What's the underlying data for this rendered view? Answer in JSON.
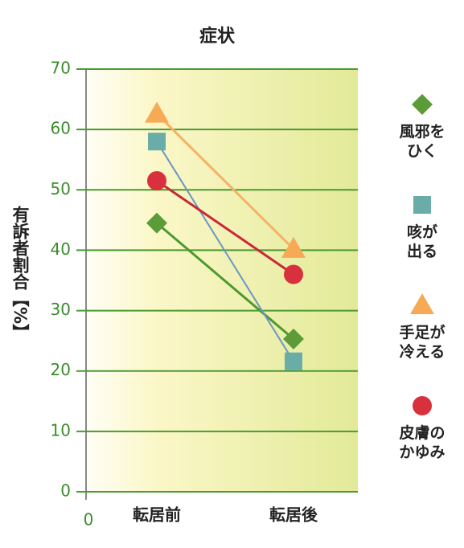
{
  "chart_data": {
    "type": "line",
    "title": "症状",
    "y_label": "有訴者割合【%】",
    "x_origin_label": "0",
    "categories": [
      "転居前",
      "転居後"
    ],
    "series": [
      {
        "name": "風邪を\nひく",
        "color": "#5c9c38",
        "line_color": "#4a9a30",
        "marker": "diamond",
        "values": [
          44.5,
          25.3
        ]
      },
      {
        "name": "咳が\n出る",
        "color": "#6aaca8",
        "line_color": "#6a96c4",
        "marker": "square",
        "values": [
          58,
          21.6
        ]
      },
      {
        "name": "手足が\n冷える",
        "color": "#f6aa55",
        "line_color": "#f6b266",
        "marker": "triangle",
        "values": [
          62.6,
          40.2
        ]
      },
      {
        "name": "皮膚の\nかゆみ",
        "color": "#d8303c",
        "line_color": "#c82838",
        "marker": "circle",
        "values": [
          51.5,
          36
        ]
      }
    ],
    "ylim": [
      0,
      70
    ],
    "yticks": [
      0,
      10,
      20,
      30,
      40,
      50,
      60,
      70
    ],
    "grid": true
  }
}
